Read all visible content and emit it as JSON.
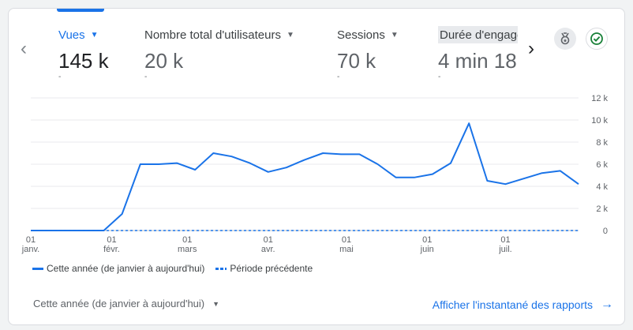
{
  "metrics": [
    {
      "label": "Vues",
      "value": "145 k",
      "dash": "-"
    },
    {
      "label": "Nombre total d'utilisateurs",
      "value": "20 k",
      "dash": "-"
    },
    {
      "label": "Sessions",
      "value": "70 k",
      "dash": "-"
    },
    {
      "label": "Durée d'engagement",
      "value": "4 min 18",
      "dash": "-"
    }
  ],
  "icons": {
    "left": "chevron-left-icon",
    "right": "chevron-right-icon",
    "insights": "insights-icon",
    "check": "check-circle-icon"
  },
  "colors": {
    "accent": "#1a73e8",
    "check": "#188038"
  },
  "chart_data": {
    "type": "line",
    "y_ticks": [
      "12 k",
      "10 k",
      "8 k",
      "6 k",
      "4 k",
      "2 k",
      "0"
    ],
    "ylim": [
      0,
      12000
    ],
    "x_ticks": [
      {
        "day": "01",
        "month": "janv.",
        "index": 0
      },
      {
        "day": "01",
        "month": "févr.",
        "index": 4.43
      },
      {
        "day": "01",
        "month": "mars",
        "index": 8.57
      },
      {
        "day": "01",
        "month": "avr.",
        "index": 13.0
      },
      {
        "day": "01",
        "month": "mai",
        "index": 17.29
      },
      {
        "day": "01",
        "month": "juin",
        "index": 21.71
      },
      {
        "day": "01",
        "month": "juil.",
        "index": 26.0
      }
    ],
    "series": [
      {
        "name": "Cette année (de janvier à aujourd'hui)",
        "style": "solid",
        "values": [
          0,
          0,
          0,
          0,
          0,
          1500,
          6000,
          6000,
          6100,
          5500,
          7000,
          6700,
          6100,
          5300,
          5700,
          6400,
          7000,
          6900,
          6900,
          6000,
          4800,
          4800,
          5100,
          6100,
          9700,
          4500,
          4200,
          4700,
          5200,
          5400,
          4200
        ]
      },
      {
        "name": "Période précédente",
        "style": "dashed",
        "values": [
          0,
          0,
          0,
          0,
          0,
          0,
          0,
          0,
          0,
          0,
          0,
          0,
          0,
          0,
          0,
          0,
          0,
          0,
          0,
          0,
          0,
          0,
          0,
          0,
          0,
          0,
          0,
          0,
          0,
          0,
          0
        ]
      }
    ]
  },
  "legend": {
    "current": "Cette année (de janvier à aujourd'hui)",
    "previous": "Période précédente"
  },
  "footer": {
    "date_range": "Cette année (de janvier à aujourd'hui)",
    "link": "Afficher l'instantané des rapports"
  }
}
